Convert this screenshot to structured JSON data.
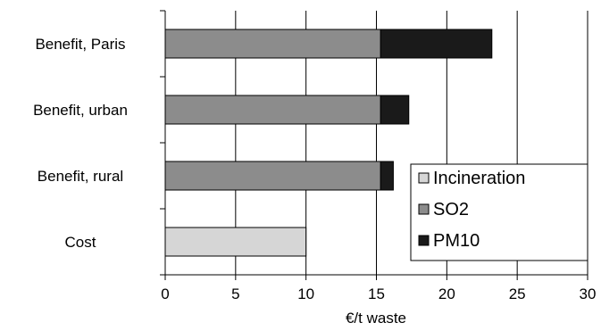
{
  "chart_data": {
    "type": "bar",
    "orientation": "horizontal",
    "stacked": true,
    "categories": [
      "Benefit, Paris",
      "Benefit, urban",
      "Benefit, rural",
      "Cost"
    ],
    "series": [
      {
        "name": "Incineration",
        "color": "#d6d6d6",
        "values": [
          0,
          0,
          0,
          10
        ]
      },
      {
        "name": "SO2",
        "color": "#8c8c8c",
        "values": [
          15.3,
          15.3,
          15.3,
          0
        ]
      },
      {
        "name": "PM10",
        "color": "#1a1a1a",
        "values": [
          7.9,
          2.0,
          0.9,
          0
        ]
      }
    ],
    "xlabel": "€/t waste",
    "ylabel": "",
    "xlim": [
      0,
      30
    ],
    "xticks": [
      "0",
      "5",
      "10",
      "15",
      "20",
      "25",
      "30"
    ],
    "grid": "vertical",
    "legend_position": "lower-right"
  }
}
